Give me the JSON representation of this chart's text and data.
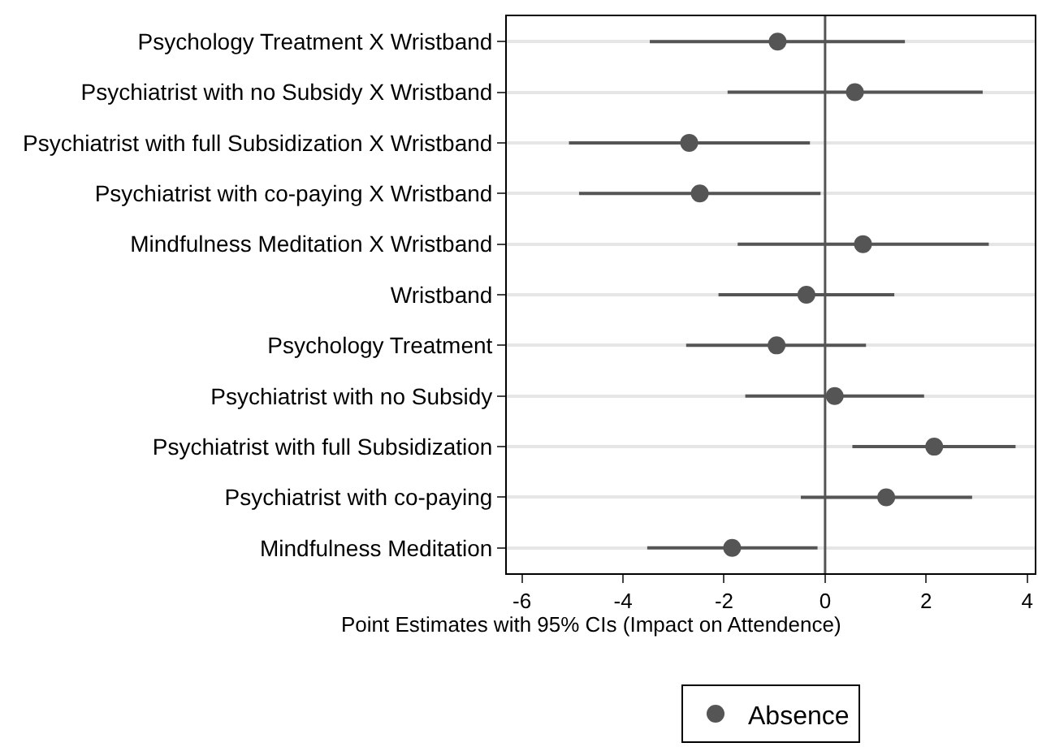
{
  "chart_data": {
    "type": "scatter",
    "orientation": "horizontal",
    "categories": [
      "Psychology Treatment X Wristband",
      "Psychiatrist with no Subsidy X Wristband",
      "Psychiatrist with full Subsidization X Wristband",
      "Psychiatrist with co-paying X Wristband",
      "Mindfulness Meditation X Wristband",
      "Wristband",
      "Psychology Treatment",
      "Psychiatrist with no Subsidy",
      "Psychiatrist with full Subsidization",
      "Psychiatrist with co-paying",
      "Mindfulness Meditation"
    ],
    "series": [
      {
        "name": "Absence",
        "color": "#555555",
        "values": [
          -0.94,
          0.59,
          -2.69,
          -2.48,
          0.75,
          -0.37,
          -0.96,
          0.19,
          2.16,
          1.21,
          -1.84
        ],
        "errors": [
          [
            -3.47,
            1.58
          ],
          [
            -1.93,
            3.12
          ],
          [
            -5.07,
            -0.3
          ],
          [
            -4.87,
            -0.09
          ],
          [
            -1.73,
            3.24
          ],
          [
            -2.11,
            1.37
          ],
          [
            -2.75,
            0.81
          ],
          [
            -1.58,
            1.96
          ],
          [
            0.54,
            3.77
          ],
          [
            -0.48,
            2.91
          ],
          [
            -3.52,
            -0.15
          ]
        ]
      }
    ],
    "xlabel": "Point Estimates with 95% CIs (Impact on Attendence)",
    "xlim": [
      -6.3,
      4.15
    ],
    "xticks": [
      -6,
      -4,
      -2,
      0,
      2,
      4
    ],
    "ref_lines": [
      {
        "axis": "x",
        "value": 0,
        "color": "#555555"
      }
    ],
    "grid": "y",
    "legend": "bottom",
    "marker": "circle"
  }
}
